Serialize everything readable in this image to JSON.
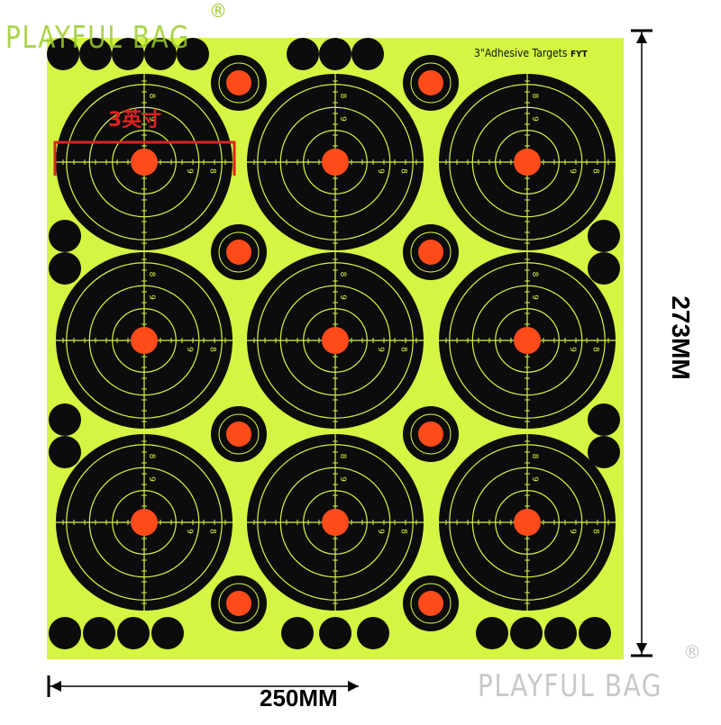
{
  "watermark": {
    "brand": "PLAYFUL BAG",
    "reg_mark": "®"
  },
  "sheet": {
    "title": "3\"Adhesive Targets",
    "mark": "FYT",
    "size_callout": "3英寸",
    "width_label": "250MM",
    "height_label": "273MM"
  },
  "target_ring_label": "8",
  "target_ring_label_inner": "9",
  "colors": {
    "sheet": "#d4f542",
    "target": "#0c0c0c",
    "ring_lines": "#d4f542",
    "bullseye": "#ff4a1a",
    "callout": "#e02020"
  }
}
